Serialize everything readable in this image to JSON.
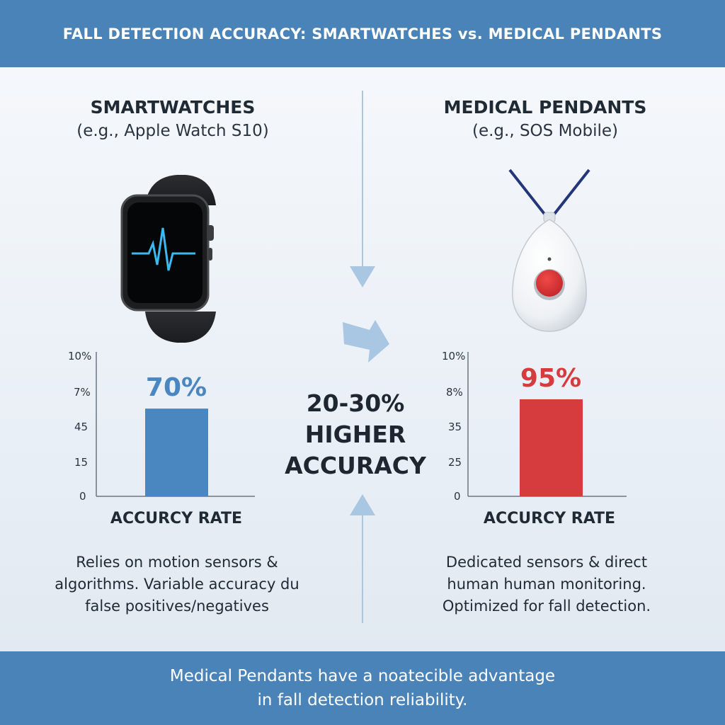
{
  "header": {
    "title": "FALL DETECTION ACCURACY: SMARTWATCHES vs. MEDICAL PENDANTS"
  },
  "left": {
    "title": "SMARTWATCHES",
    "subtitle": "(e.g., Apple Watch S10)",
    "device_icon": "smartwatch-icon",
    "description": [
      "Relies on motion sensors &",
      "algorithms. Variable accuracy du",
      "false positives/negatives"
    ]
  },
  "right": {
    "title": "MEDICAL PENDANTS",
    "subtitle": "(e.g., SOS Mobile)",
    "device_icon": "medical-pendant-icon",
    "description": [
      "Dedicated sensors & direct",
      "human human monitoring.",
      "Optimized for fall detection."
    ]
  },
  "center": {
    "lines": [
      "20-30%",
      "HIGHER",
      "ACCURACY"
    ]
  },
  "footer": {
    "lines": [
      "Medical Pendants have a noatecible advantage",
      "in fall detection reliability."
    ]
  },
  "colors": {
    "header": "#4a83b8",
    "smartwatch_bar": "#4a86bf",
    "pendant_bar": "#d63b3e",
    "arrow": "#a9c6e2"
  },
  "chart_data": [
    {
      "type": "bar",
      "categories": [
        "ACCURCY RATE"
      ],
      "values": [
        70
      ],
      "value_label": "70%",
      "xlabel": "ACCURCY RATE",
      "y_tick_labels": [
        "0",
        "15",
        "45",
        "7%",
        "10%"
      ],
      "color": "#4a86bf"
    },
    {
      "type": "bar",
      "categories": [
        "ACCURCY RATE"
      ],
      "values": [
        95
      ],
      "value_label": "95%",
      "xlabel": "ACCURCY RATE",
      "y_tick_labels": [
        "0",
        "25",
        "35",
        "8%",
        "10%"
      ],
      "color": "#d63b3e"
    }
  ]
}
